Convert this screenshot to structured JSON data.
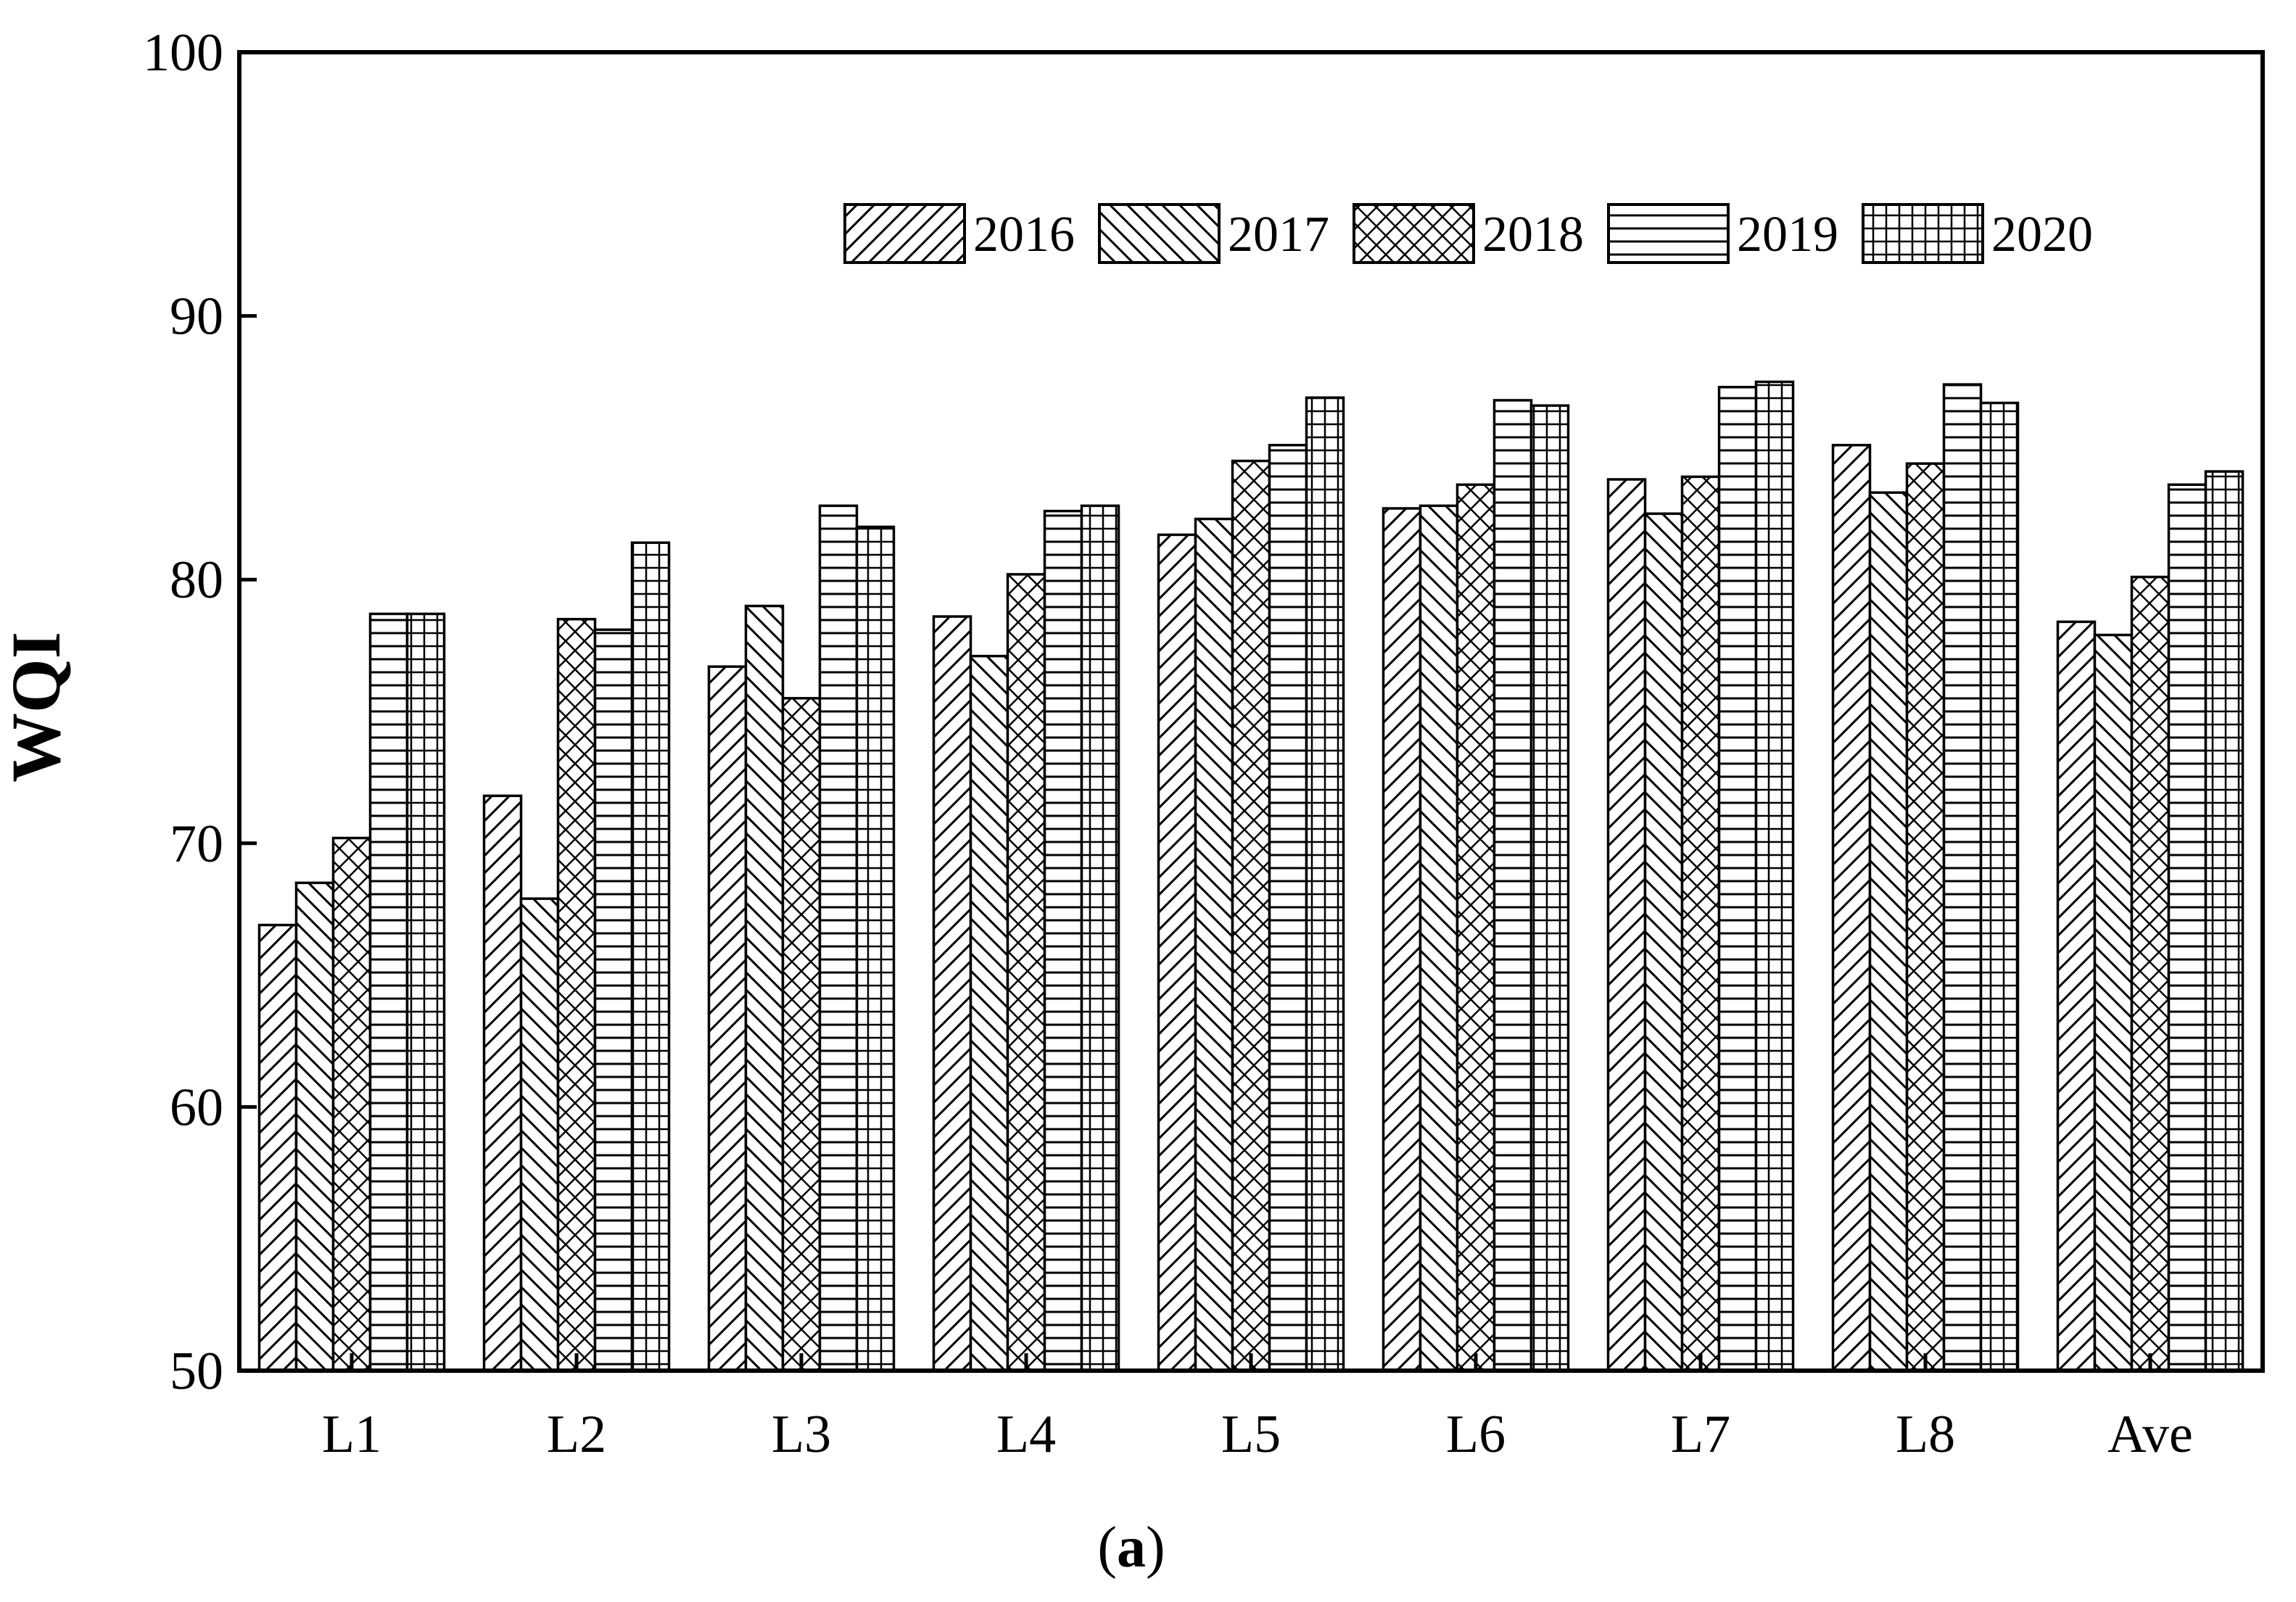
{
  "chart_data": {
    "type": "bar",
    "xlabel": "",
    "ylabel": "WQI",
    "panel_label": {
      "open": "(",
      "letter": "a",
      "close": ")"
    },
    "ylim": [
      50,
      100
    ],
    "yticks": [
      50,
      60,
      70,
      80,
      90,
      100
    ],
    "categories": [
      "L1",
      "L2",
      "L3",
      "L4",
      "L5",
      "L6",
      "L7",
      "L8",
      "Ave"
    ],
    "legend_position": "upper-right",
    "grid": false,
    "bar_fill": "#ffffff",
    "bar_stroke": "#000000",
    "series": [
      {
        "name": "2016",
        "pattern": "diagonal-forward",
        "values": [
          66.9,
          71.8,
          76.7,
          78.6,
          81.7,
          82.7,
          83.8,
          85.1,
          78.4
        ]
      },
      {
        "name": "2017",
        "pattern": "diagonal-backward",
        "values": [
          68.5,
          67.9,
          79.0,
          77.1,
          82.3,
          82.8,
          82.5,
          83.3,
          77.9
        ]
      },
      {
        "name": "2018",
        "pattern": "crosshatch-diagonal",
        "values": [
          70.2,
          78.5,
          75.5,
          80.2,
          84.5,
          83.6,
          83.9,
          84.4,
          80.1
        ]
      },
      {
        "name": "2019",
        "pattern": "horizontal-lines",
        "values": [
          78.7,
          78.1,
          82.8,
          82.6,
          85.1,
          86.8,
          87.3,
          87.4,
          83.6
        ]
      },
      {
        "name": "2020",
        "pattern": "grid",
        "values": [
          78.7,
          81.4,
          82.0,
          82.8,
          86.9,
          86.6,
          87.5,
          86.7,
          84.1
        ]
      }
    ]
  }
}
